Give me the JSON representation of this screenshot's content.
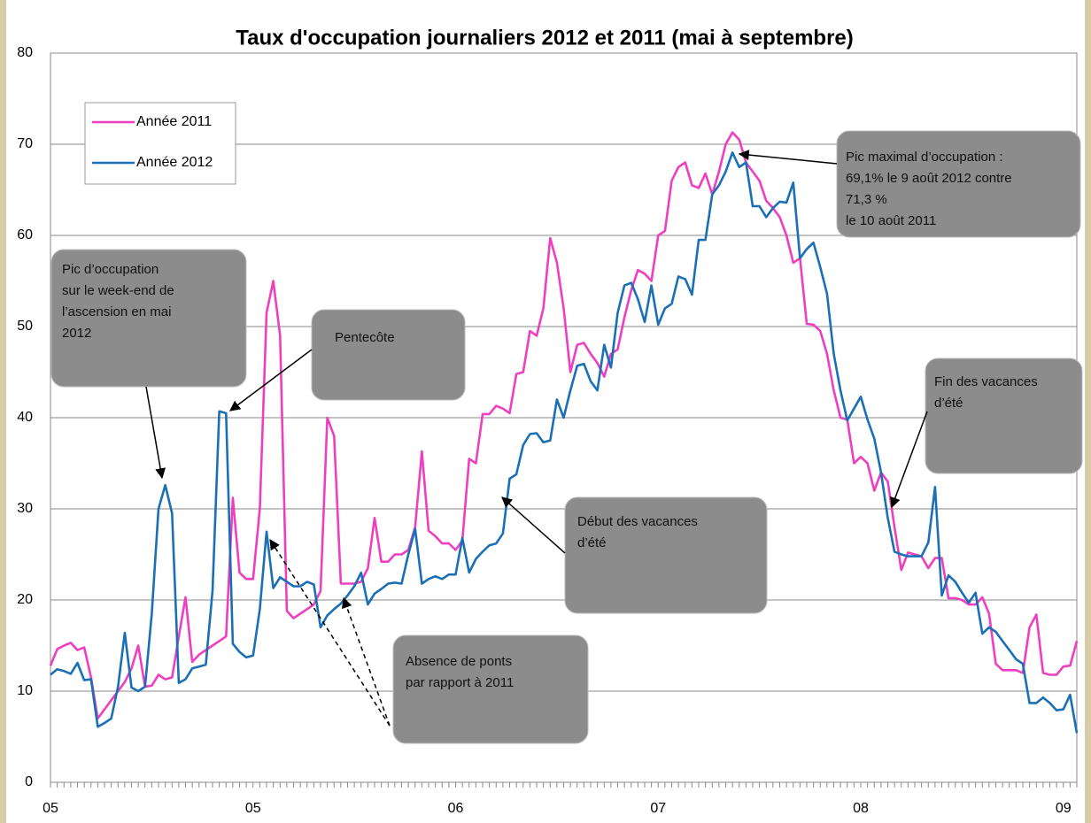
{
  "chart_data": {
    "type": "line",
    "title": "Taux d'occupation journaliers 2012 et 2011 (mai à septembre)",
    "categories": [
      "05",
      null,
      null,
      null,
      null,
      null,
      null,
      null,
      null,
      null,
      null,
      null,
      null,
      null,
      null,
      null,
      null,
      null,
      null,
      null,
      null,
      null,
      null,
      null,
      null,
      null,
      null,
      null,
      null,
      null,
      "05",
      null,
      null,
      null,
      null,
      null,
      null,
      null,
      null,
      null,
      null,
      null,
      null,
      null,
      null,
      null,
      null,
      null,
      null,
      null,
      null,
      null,
      null,
      null,
      null,
      null,
      null,
      null,
      null,
      null,
      "06",
      null,
      null,
      null,
      null,
      null,
      null,
      null,
      null,
      null,
      null,
      null,
      null,
      null,
      null,
      null,
      null,
      null,
      null,
      null,
      null,
      null,
      null,
      null,
      null,
      null,
      null,
      null,
      null,
      null,
      "07",
      null,
      null,
      null,
      null,
      null,
      null,
      null,
      null,
      null,
      null,
      null,
      null,
      null,
      null,
      null,
      null,
      null,
      null,
      null,
      null,
      null,
      null,
      null,
      null,
      null,
      null,
      null,
      null,
      null,
      "08",
      null,
      null,
      null,
      null,
      null,
      null,
      null,
      null,
      null,
      null,
      null,
      null,
      null,
      null,
      null,
      null,
      null,
      null,
      null,
      null,
      null,
      null,
      null,
      null,
      null,
      null,
      null,
      null,
      null,
      "09",
      null,
      null
    ],
    "series": [
      {
        "name": "Année 2011",
        "color": "#ee3fbe",
        "values": [
          12.8,
          14.6,
          15,
          15.3,
          14.5,
          14.8,
          11.5,
          7,
          8,
          9,
          10,
          11,
          12.5,
          15,
          10.5,
          10.6,
          11.8,
          11.3,
          11.5,
          16,
          20.3,
          13.2,
          14,
          14.5,
          15,
          15.5,
          16,
          31.2,
          23,
          22.3,
          22.3,
          30,
          51.5,
          55,
          49,
          18.8,
          18,
          18.5,
          19,
          19.5,
          21,
          40,
          38,
          21.8,
          21.8,
          21.8,
          22,
          23.5,
          29,
          24.2,
          24.2,
          25,
          25,
          25.5,
          28,
          36.3,
          27.6,
          27,
          26.2,
          26.2,
          25.5,
          26.5,
          35.5,
          35,
          40.4,
          40.4,
          41.3,
          41,
          40.5,
          44.8,
          45,
          49.5,
          49,
          52,
          59.7,
          57,
          52,
          45,
          48,
          48.2,
          47,
          46,
          44.5,
          47,
          47.5,
          51,
          54,
          56.2,
          55.8,
          55,
          60,
          60.5,
          66,
          67.5,
          68,
          65.5,
          65.2,
          66.8,
          64.5,
          67,
          70,
          71.3,
          70.5,
          68,
          67,
          66,
          63.8,
          63,
          62,
          60,
          57,
          57.5,
          50.3,
          50.2,
          49.5,
          47,
          43,
          40,
          39.8,
          35,
          35.7,
          35,
          32,
          34,
          33,
          28,
          23.3,
          25.2,
          25,
          24.8,
          23.5,
          24.6,
          24.6,
          20.2,
          20.2,
          20,
          19.5,
          19.5,
          20.3,
          18.5,
          13,
          12.3,
          12.3,
          12.3,
          12,
          17,
          18.4,
          12,
          11.8,
          11.8,
          12.7,
          12.8,
          15.5
        ]
      },
      {
        "name": "Année 2012",
        "color": "#1b6fb5",
        "values": [
          11.8,
          12.4,
          12.2,
          11.9,
          13.1,
          11.2,
          11.3,
          6.1,
          6.5,
          7,
          10.5,
          16.4,
          10.4,
          10,
          10.5,
          18.5,
          30,
          32.6,
          29.5,
          10.9,
          11.3,
          12.5,
          12.7,
          12.9,
          21,
          40.7,
          40.5,
          15.2,
          14.3,
          13.7,
          13.9,
          19,
          27.5,
          21.3,
          22.5,
          22,
          21.5,
          21.5,
          22,
          21.7,
          17,
          18.3,
          19,
          19.6,
          20.5,
          21.5,
          23,
          19.5,
          20.7,
          21.2,
          21.8,
          21.9,
          21.8,
          25,
          27.8,
          21.8,
          22.3,
          22.6,
          22.3,
          22.8,
          22.8,
          26.8,
          23,
          24.5,
          25.3,
          26,
          26.2,
          27.3,
          33.3,
          33.8,
          37,
          38.2,
          38.3,
          37.3,
          37.5,
          42,
          40,
          43,
          45.7,
          45.9,
          44,
          43,
          48,
          45.5,
          51.5,
          54.5,
          54.8,
          53,
          50.5,
          54.5,
          50.2,
          52,
          52.5,
          55.5,
          55.2,
          53.5,
          59.5,
          59.5,
          64.5,
          65.5,
          67,
          69.1,
          67.5,
          68,
          63.2,
          63.2,
          62,
          63,
          63.7,
          63.6,
          65.8,
          57.5,
          58.5,
          59.2,
          56.5,
          53.6,
          47,
          43,
          39.7,
          41,
          42.3,
          39.8,
          37.7,
          34,
          29,
          25.3,
          25,
          24.8,
          24.8,
          24.8,
          26.3,
          32.4,
          20.5,
          22.7,
          22,
          20.8,
          19.7,
          20.8,
          16.3,
          17,
          16.5,
          15.5,
          14.5,
          13.5,
          13,
          8.7,
          8.7,
          9.3,
          8.7,
          7.9,
          8,
          9.6,
          5.4
        ]
      }
    ],
    "ylim": [
      0,
      80
    ],
    "yticks": [
      0,
      10,
      20,
      30,
      40,
      50,
      60,
      70,
      80
    ],
    "grid": true,
    "legend": "upper left",
    "annotations": [
      {
        "lines": [
          "Pic d’occupation",
          "sur le week-end  de",
          "l’ascension en mai",
          "2012"
        ]
      },
      {
        "lines": [
          "Pentecôte"
        ]
      },
      {
        "lines": [
          "Pic maximal d’occupation :",
          "69,1% le 9 août 2012 contre",
          "71,3 %",
          "le 10 août  2011"
        ]
      },
      {
        "lines": [
          "Fin des vacances",
          "d’été"
        ]
      },
      {
        "lines": [
          "Début des vacances",
          "d’été"
        ]
      },
      {
        "lines": [
          "Absence de ponts",
          "par rapport à 2011"
        ]
      }
    ]
  }
}
